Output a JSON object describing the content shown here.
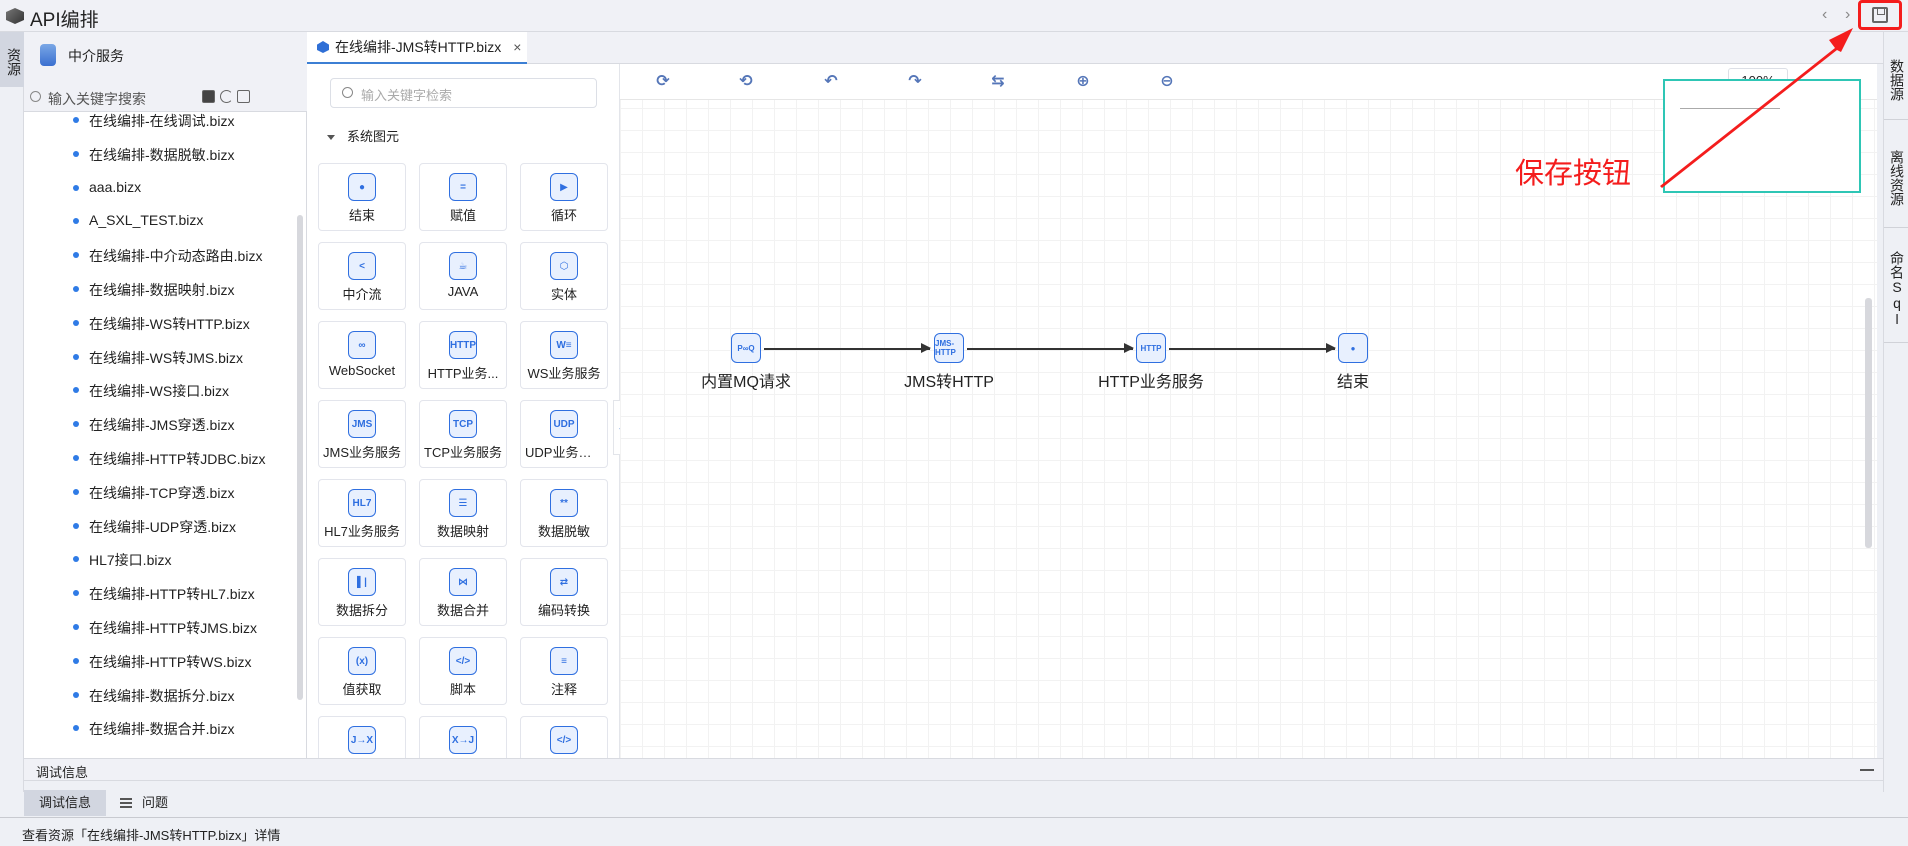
{
  "app": {
    "title": "API编排",
    "save_tooltip_annotation": "保存按钮"
  },
  "left_strip": {
    "tab": "资源"
  },
  "resources": {
    "header": "中介服务",
    "search_placeholder": "输入关键字搜索",
    "items": [
      "在线编排-在线调试.bizx",
      "在线编排-数据脱敏.bizx",
      "aaa.bizx",
      "A_SXL_TEST.bizx",
      "在线编排-中介动态路由.bizx",
      "在线编排-数据映射.bizx",
      "在线编排-WS转HTTP.bizx",
      "在线编排-WS转JMS.bizx",
      "在线编排-WS接口.bizx",
      "在线编排-JMS穿透.bizx",
      "在线编排-HTTP转JDBC.bizx",
      "在线编排-TCP穿透.bizx",
      "在线编排-UDP穿透.bizx",
      "HL7接口.bizx",
      "在线编排-HTTP转HL7.bizx",
      "在线编排-HTTP转JMS.bizx",
      "在线编排-HTTP转WS.bizx",
      "在线编排-数据拆分.bizx",
      "在线编排-数据合并.bizx"
    ]
  },
  "editor_tab": {
    "label": "在线编排-JMS转HTTP.bizx",
    "close": "×"
  },
  "palette": {
    "search_placeholder": "输入关键字检索",
    "group": "系统图元",
    "items": [
      {
        "label": "结束",
        "icon": "●"
      },
      {
        "label": "赋值",
        "icon": "="
      },
      {
        "label": "循环",
        "icon": "▶"
      },
      {
        "label": "中介流",
        "icon": "<"
      },
      {
        "label": "JAVA",
        "icon": "☕"
      },
      {
        "label": "实体",
        "icon": "⬡"
      },
      {
        "label": "WebSocket",
        "icon": "∞"
      },
      {
        "label": "HTTP业务...",
        "icon": "HTTP"
      },
      {
        "label": "WS业务服务",
        "icon": "W≡"
      },
      {
        "label": "JMS业务服务",
        "icon": "JMS"
      },
      {
        "label": "TCP业务服务",
        "icon": "TCP"
      },
      {
        "label": "UDP业务服务",
        "icon": "UDP"
      },
      {
        "label": "HL7业务服务",
        "icon": "HL7"
      },
      {
        "label": "数据映射",
        "icon": "☰"
      },
      {
        "label": "数据脱敏",
        "icon": "**"
      },
      {
        "label": "数据拆分",
        "icon": "▌|"
      },
      {
        "label": "数据合并",
        "icon": "⋈"
      },
      {
        "label": "编码转换",
        "icon": "⇄"
      },
      {
        "label": "值获取",
        "icon": "(x)"
      },
      {
        "label": "脚本",
        "icon": "</>"
      },
      {
        "label": "注释",
        "icon": "≡"
      },
      {
        "label": "",
        "icon": "J→X"
      },
      {
        "label": "",
        "icon": "X→J"
      },
      {
        "label": "",
        "icon": "</>"
      }
    ]
  },
  "toolbar": {
    "zoom": "100%",
    "icons": [
      "layout-vertical-icon",
      "layout-horizontal-icon",
      "undo-icon",
      "redo-icon",
      "fit-icon",
      "zoom-in-icon",
      "zoom-out-icon"
    ]
  },
  "flow": {
    "nodes": [
      {
        "label": "内置MQ请求",
        "icon": "P∞Q"
      },
      {
        "label": "JMS转HTTP",
        "icon": "JMS-HTTP"
      },
      {
        "label": "HTTP业务服务",
        "icon": "HTTP"
      },
      {
        "label": "结束",
        "icon": "●"
      }
    ]
  },
  "right_strip": {
    "tabs": [
      "数据源",
      "离线资源",
      "命名Sql"
    ]
  },
  "debug": {
    "title": "调试信息",
    "tabs": [
      "调试信息",
      "问题"
    ]
  },
  "status": {
    "text": "查看资源「在线编排-JMS转HTTP.bizx」详情"
  },
  "colors": {
    "accent": "#2f6fe0",
    "annotation": "#f41d1d",
    "minimap_border": "#2ec6b5"
  }
}
